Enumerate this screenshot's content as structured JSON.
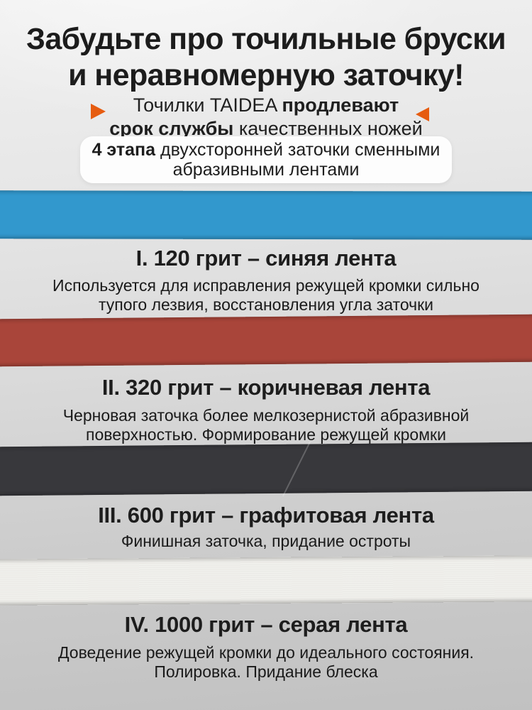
{
  "header": {
    "title_line1": "Забудьте про точильные бруски",
    "title_line2": "и неравномерную заточку!",
    "subtitle_line1_regular": "Точилки TAIDEA ",
    "subtitle_line1_bold": "продлевают",
    "subtitle_line2_bold": "срок службы ",
    "subtitle_line2_regular": "качественных ножей"
  },
  "pill": {
    "bold": "4 этапа",
    "line1_rest": " двухсторонней заточки сменными",
    "line2": "абразивными лентами"
  },
  "sections": [
    {
      "title": "I. 120 грит – синяя лента",
      "body_lines": [
        "Используется для исправления режущей кромки сильно",
        "тупого лезвия, восстановления угла заточки"
      ],
      "band_name": "синяя лента",
      "band_color": "#3298cd"
    },
    {
      "title": "II. 320 грит – коричневая лента",
      "body_lines": [
        "Черновая заточка более мелкозернистой абразивной",
        "поверхностью. Формирование режущей кромки"
      ],
      "band_name": "коричневая лента",
      "band_color": "#a9453a"
    },
    {
      "title": "III. 600 грит – графитовая лента",
      "body_lines": [
        "Финишная заточка, придание остроты"
      ],
      "band_name": "графитовая лента",
      "band_color": "#38383c"
    },
    {
      "title": "IV. 1000 грит – серая лента",
      "body_lines": [
        "Доведение режущей кромки до идеального состояния.",
        "Полировка. Придание блеска"
      ],
      "band_name": "серая лента",
      "band_color": "#f0efeb"
    }
  ],
  "colors": {
    "accent_orange": "#e65c10",
    "text_dark": "#1c1c1c",
    "background_top": "#f0f0f0",
    "background_bottom": "#c1c1c1",
    "pill_background": "#fdfdfd"
  }
}
